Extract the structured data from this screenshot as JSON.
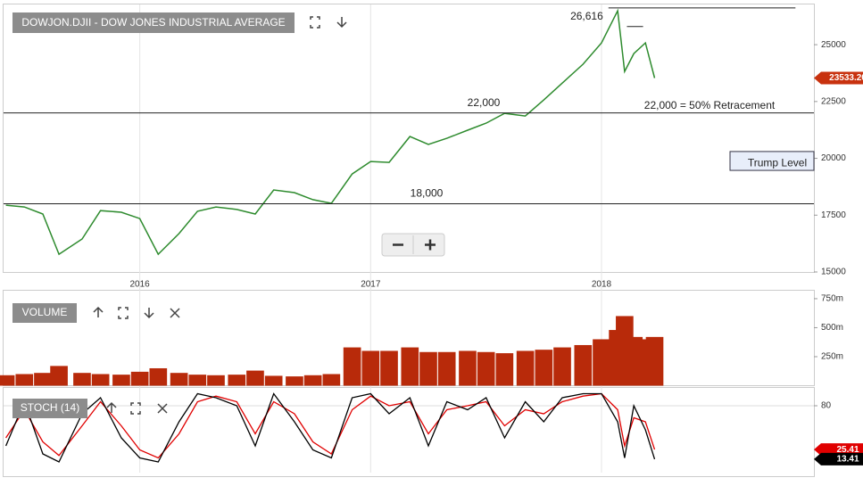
{
  "chart_data": [
    {
      "type": "line",
      "title": "DOWJON.DJII - DOW JONES INDUSTRIAL AVERAGE",
      "color": "#2e8b2e",
      "x": [
        2015.42,
        2015.5,
        2015.58,
        2015.65,
        2015.75,
        2015.83,
        2015.92,
        2016.0,
        2016.08,
        2016.17,
        2016.25,
        2016.33,
        2016.42,
        2016.5,
        2016.58,
        2016.67,
        2016.75,
        2016.83,
        2016.92,
        2017.0,
        2017.08,
        2017.17,
        2017.25,
        2017.33,
        2017.42,
        2017.5,
        2017.58,
        2017.67,
        2017.75,
        2017.83,
        2017.92,
        2018.0,
        2018.07,
        2018.1,
        2018.14,
        2018.19,
        2018.23
      ],
      "values": [
        17940,
        17860,
        17550,
        15780,
        16450,
        17700,
        17630,
        17350,
        15780,
        16690,
        17670,
        17860,
        17750,
        17550,
        18610,
        18490,
        18180,
        18020,
        19310,
        19860,
        19820,
        20960,
        20610,
        20880,
        21240,
        21550,
        21980,
        21860,
        22570,
        23310,
        24140,
        25080,
        26490,
        23820,
        24610,
        25080,
        23533.2
      ],
      "xlim": [
        2015.41,
        2018.92
      ],
      "xticks": [
        2016,
        2017,
        2018
      ],
      "ylim": [
        15000,
        26770
      ],
      "yticks": [
        15000,
        17500,
        20000,
        22500,
        25000
      ],
      "hlines": [
        {
          "value": 26616,
          "label": "26,616",
          "x": [
            2018.03,
            2018.84
          ]
        },
        {
          "value": 25800,
          "x": [
            2018.11,
            2018.18
          ]
        },
        {
          "value": 22000,
          "label": "22,000"
        },
        {
          "value": 18000,
          "label": "18,000"
        }
      ],
      "note": "22,000 = 50% Retracement",
      "zone": {
        "label": "Trump Level",
        "range": [
          19470,
          20300
        ]
      },
      "last_value": {
        "value": 23533.2,
        "label": "23533.20"
      }
    },
    {
      "type": "bar",
      "title": "VOLUME",
      "color": "#b82a0a",
      "x": [
        2015.42,
        2015.5,
        2015.58,
        2015.65,
        2015.75,
        2015.83,
        2015.92,
        2016.0,
        2016.08,
        2016.17,
        2016.25,
        2016.33,
        2016.42,
        2016.5,
        2016.58,
        2016.67,
        2016.75,
        2016.83,
        2016.92,
        2017.0,
        2017.08,
        2017.17,
        2017.25,
        2017.33,
        2017.42,
        2017.5,
        2017.58,
        2017.67,
        2017.75,
        2017.83,
        2017.92,
        2018.0,
        2018.07,
        2018.1,
        2018.14,
        2018.19,
        2018.23
      ],
      "values": [
        90,
        100,
        110,
        170,
        110,
        100,
        95,
        120,
        150,
        110,
        95,
        90,
        95,
        130,
        85,
        80,
        90,
        100,
        330,
        300,
        300,
        330,
        290,
        290,
        300,
        290,
        280,
        300,
        310,
        330,
        350,
        400,
        480,
        600,
        420,
        400,
        420
      ],
      "ylim": [
        0,
        811
      ],
      "yticks": [
        {
          "value": 250,
          "label": "250m"
        },
        {
          "value": 500,
          "label": "500m"
        },
        {
          "value": 750,
          "label": "750m"
        }
      ]
    },
    {
      "type": "line",
      "title": "STOCH (14)",
      "x": [
        2015.42,
        2015.5,
        2015.58,
        2015.65,
        2015.75,
        2015.83,
        2015.92,
        2016.0,
        2016.08,
        2016.17,
        2016.25,
        2016.33,
        2016.42,
        2016.5,
        2016.58,
        2016.67,
        2016.75,
        2016.83,
        2016.92,
        2017.0,
        2017.08,
        2017.17,
        2017.25,
        2017.33,
        2017.42,
        2017.5,
        2017.58,
        2017.67,
        2017.75,
        2017.83,
        2017.92,
        2018.0,
        2018.07,
        2018.1,
        2018.14,
        2018.19,
        2018.23
      ],
      "ylim": [
        0,
        100
      ],
      "yticks": [
        80
      ],
      "series": [
        {
          "color": "#e00000",
          "last_label": "25.41",
          "values": [
            40,
            75,
            35,
            18,
            55,
            85,
            55,
            25,
            15,
            45,
            85,
            92,
            85,
            45,
            85,
            70,
            35,
            20,
            75,
            92,
            80,
            85,
            45,
            75,
            80,
            85,
            55,
            75,
            70,
            85,
            92,
            95,
            75,
            30,
            65,
            60,
            25.41
          ]
        },
        {
          "color": "#000000",
          "last_label": "13.41",
          "values": [
            30,
            85,
            20,
            10,
            70,
            90,
            40,
            15,
            10,
            60,
            95,
            90,
            80,
            30,
            95,
            60,
            25,
            15,
            90,
            95,
            70,
            90,
            30,
            85,
            75,
            90,
            40,
            85,
            60,
            90,
            95,
            95,
            60,
            15,
            80,
            50,
            13.41
          ]
        }
      ]
    }
  ]
}
